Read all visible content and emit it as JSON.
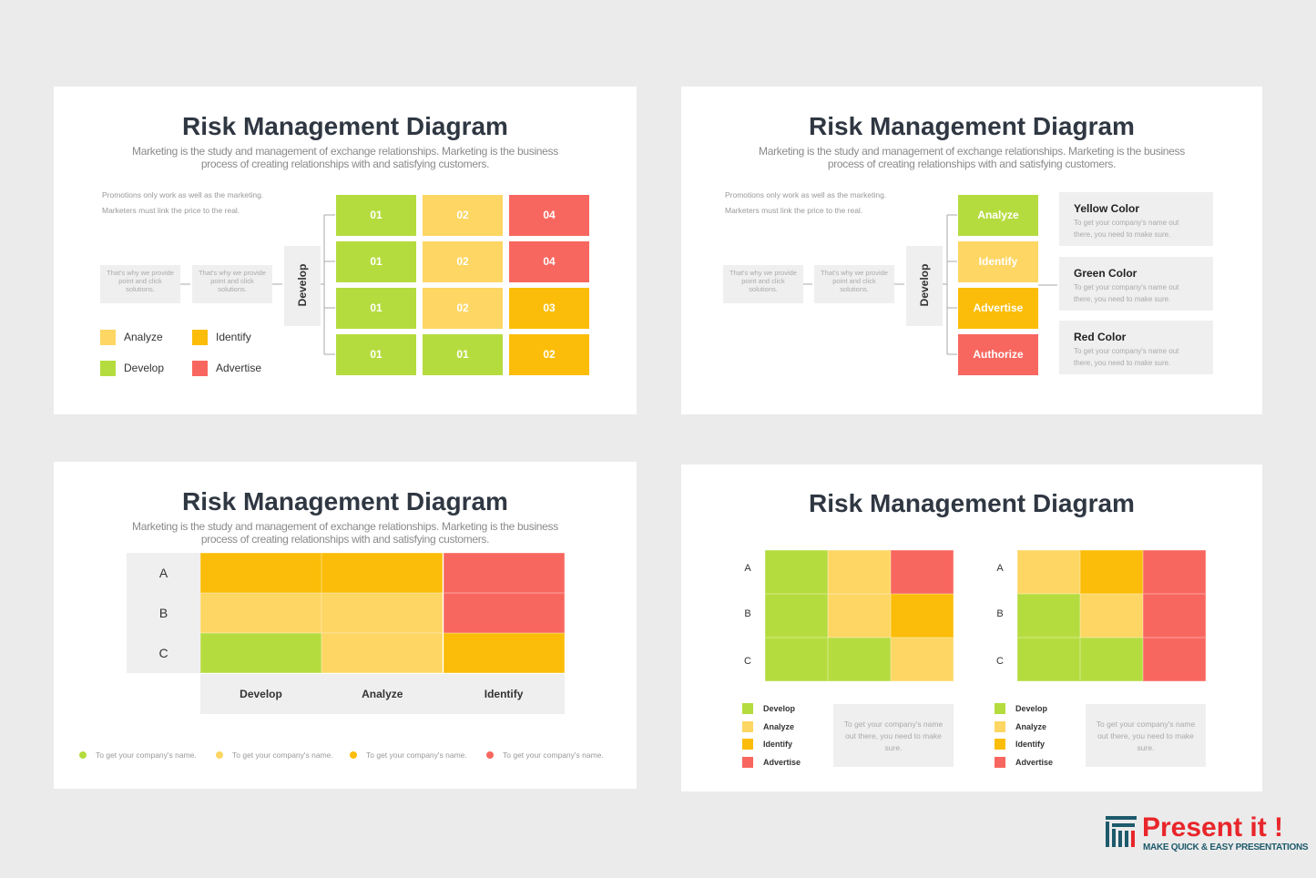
{
  "slides": [
    {
      "title": "Risk Management Diagram",
      "subtitle": [
        "Marketing is the study and management of exchange relationships. Marketing is the business",
        "process of creating relationships with and satisfying customers."
      ],
      "note": [
        "Promotions only work as well as the marketing.",
        "Marketers must link the price to the real."
      ],
      "steps": [
        "That's why we provide point and click solutions.",
        "That's why we provide point and click solutions."
      ],
      "side_label": "Develop",
      "grid": [
        [
          {
            "label": "01",
            "color": "#b5dc3f"
          },
          {
            "label": "02",
            "color": "#fdd663"
          },
          {
            "label": "04",
            "color": "#f8675f"
          }
        ],
        [
          {
            "label": "01",
            "color": "#b5dc3f"
          },
          {
            "label": "02",
            "color": "#fdd663"
          },
          {
            "label": "04",
            "color": "#f8675f"
          }
        ],
        [
          {
            "label": "01",
            "color": "#b5dc3f"
          },
          {
            "label": "02",
            "color": "#fdd663"
          },
          {
            "label": "03",
            "color": "#fbbd09"
          }
        ],
        [
          {
            "label": "01",
            "color": "#b5dc3f"
          },
          {
            "label": "01",
            "color": "#b5dc3f"
          },
          {
            "label": "02",
            "color": "#fbbd09"
          }
        ]
      ],
      "legend": [
        {
          "label": "Analyze",
          "color": "#fdd663"
        },
        {
          "label": "Identify",
          "color": "#fbbd09"
        },
        {
          "label": "Develop",
          "color": "#b5dc3f"
        },
        {
          "label": "Advertise",
          "color": "#f8675f"
        }
      ]
    },
    {
      "title": "Risk Management Diagram",
      "subtitle": [
        "Marketing is the study and management of exchange relationships. Marketing is the business",
        "process of creating relationships with and satisfying customers."
      ],
      "note": [
        "Promotions only work as well as the marketing.",
        "Marketers must link the price to the real."
      ],
      "steps": [
        "That's why we provide point and click solutions.",
        "That's why we provide point and click solutions."
      ],
      "side_label": "Develop",
      "stages": [
        {
          "label": "Analyze",
          "color": "#b5dc3f"
        },
        {
          "label": "Identify",
          "color": "#fdd663"
        },
        {
          "label": "Advertise",
          "color": "#fbbd09"
        },
        {
          "label": "Authorize",
          "color": "#f8675f"
        }
      ],
      "cards": [
        {
          "title": "Yellow Color",
          "text": "To get your company's name out there, you need to make sure."
        },
        {
          "title": "Green Color",
          "text": "To get your company's name out there, you need to make sure."
        },
        {
          "title": "Red Color",
          "text": "To get your company's name out there, you need to make sure."
        }
      ]
    },
    {
      "title": "Risk Management Diagram",
      "subtitle": [
        "Marketing is the study and management of exchange relationships. Marketing is the business",
        "process of creating relationships with and satisfying customers."
      ],
      "rows": [
        "A",
        "B",
        "C"
      ],
      "columns": [
        "Develop",
        "Analyze",
        "Identify"
      ],
      "cells": [
        [
          "#fbbd09",
          "#fbbd09",
          "#f8675f"
        ],
        [
          "#fdd663",
          "#fdd663",
          "#f8675f"
        ],
        [
          "#b5dc3f",
          "#fdd663",
          "#fbbd09"
        ]
      ],
      "footer": [
        {
          "text": "To get your company's name.",
          "color": "#b5dc3f"
        },
        {
          "text": "To get your company's name.",
          "color": "#fdd663"
        },
        {
          "text": "To get your company's name.",
          "color": "#fbbd09"
        },
        {
          "text": "To get your company's name.",
          "color": "#f8675f"
        }
      ]
    },
    {
      "title": "Risk Management Diagram",
      "matrices": [
        {
          "rows": [
            "A",
            "B",
            "C"
          ],
          "cells": [
            [
              "#b5dc3f",
              "#fdd663",
              "#f8675f"
            ],
            [
              "#b5dc3f",
              "#fdd663",
              "#fbbd09"
            ],
            [
              "#b5dc3f",
              "#b5dc3f",
              "#fdd663"
            ]
          ],
          "legend": [
            {
              "label": "Develop",
              "color": "#b5dc3f"
            },
            {
              "label": "Analyze",
              "color": "#fdd663"
            },
            {
              "label": "Identify",
              "color": "#fbbd09"
            },
            {
              "label": "Advertise",
              "color": "#f8675f"
            }
          ],
          "note": "To get your company's name out there, you need to make sure."
        },
        {
          "rows": [
            "A",
            "B",
            "C"
          ],
          "cells": [
            [
              "#fdd663",
              "#fbbd09",
              "#f8675f"
            ],
            [
              "#b5dc3f",
              "#fdd663",
              "#f8675f"
            ],
            [
              "#b5dc3f",
              "#b5dc3f",
              "#f8675f"
            ]
          ],
          "legend": [
            {
              "label": "Develop",
              "color": "#b5dc3f"
            },
            {
              "label": "Analyze",
              "color": "#fdd663"
            },
            {
              "label": "Identify",
              "color": "#fbbd09"
            },
            {
              "label": "Advertise",
              "color": "#f8675f"
            }
          ],
          "note": "To get your company's name out there, you need to make sure."
        }
      ]
    }
  ],
  "brand": {
    "name": "Present it !",
    "tagline": "MAKE QUICK & EASY PRESENTATIONS"
  }
}
